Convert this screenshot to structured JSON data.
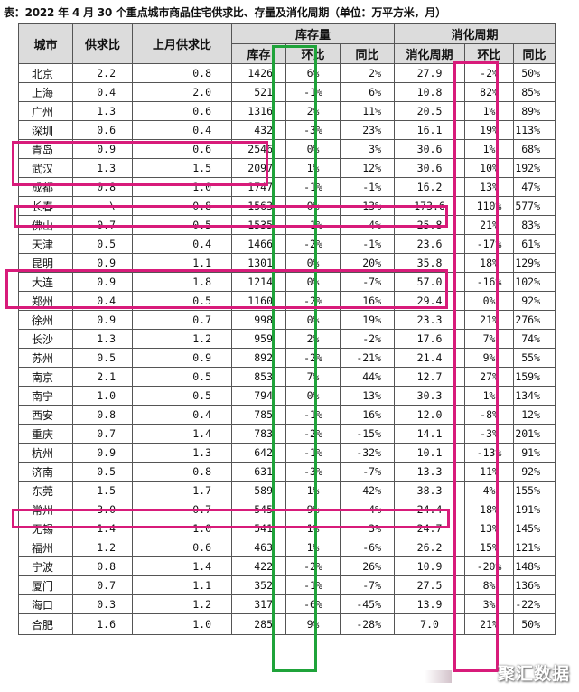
{
  "title": "表：2022 年 4 月 30 个重点城市商品住宅供求比、存量及消化周期（单位：万平方米，月）",
  "headers": {
    "city": "城市",
    "supply_ratio": "供求比",
    "last_month_ratio": "上月供求比",
    "stock_group": "库存量",
    "cycle_group": "消化周期",
    "stock": "库存",
    "stock_mom": "环比",
    "stock_yoy": "同比",
    "cycle": "消化周期",
    "cycle_mom": "环比",
    "cycle_yoy": "同比"
  },
  "rows": [
    {
      "city": "北京",
      "ratio": "2.2",
      "last": "0.8",
      "stock": "1426",
      "smom": "6%",
      "syoy": "2%",
      "cycle": "27.9",
      "cmom": "-2%",
      "cyoy": "50%"
    },
    {
      "city": "上海",
      "ratio": "0.4",
      "last": "2.0",
      "stock": "521",
      "smom": "-1%",
      "syoy": "6%",
      "cycle": "10.8",
      "cmom": "82%",
      "cyoy": "85%"
    },
    {
      "city": "广州",
      "ratio": "1.3",
      "last": "0.6",
      "stock": "1316",
      "smom": "2%",
      "syoy": "11%",
      "cycle": "20.5",
      "cmom": "1%",
      "cyoy": "89%"
    },
    {
      "city": "深圳",
      "ratio": "0.6",
      "last": "0.4",
      "stock": "432",
      "smom": "-3%",
      "syoy": "23%",
      "cycle": "16.1",
      "cmom": "19%",
      "cyoy": "113%"
    },
    {
      "city": "青岛",
      "ratio": "0.9",
      "last": "0.6",
      "stock": "2546",
      "smom": "0%",
      "syoy": "3%",
      "cycle": "30.6",
      "cmom": "1%",
      "cyoy": "68%"
    },
    {
      "city": "武汉",
      "ratio": "1.3",
      "last": "1.5",
      "stock": "2097",
      "smom": "1%",
      "syoy": "12%",
      "cycle": "30.6",
      "cmom": "10%",
      "cyoy": "192%"
    },
    {
      "city": "成都",
      "ratio": "0.8",
      "last": "1.0",
      "stock": "1747",
      "smom": "-1%",
      "syoy": "-1%",
      "cycle": "16.2",
      "cmom": "13%",
      "cyoy": "47%"
    },
    {
      "city": "长春",
      "ratio": "\\",
      "last": "0.8",
      "stock": "1563",
      "smom": "0%",
      "syoy": "13%",
      "cycle": "173.6",
      "cmom": "110%",
      "cyoy": "577%"
    },
    {
      "city": "佛山",
      "ratio": "0.7",
      "last": "0.5",
      "stock": "1535",
      "smom": "-1%",
      "syoy": "-4%",
      "cycle": "25.8",
      "cmom": "21%",
      "cyoy": "83%"
    },
    {
      "city": "天津",
      "ratio": "0.5",
      "last": "0.4",
      "stock": "1466",
      "smom": "-2%",
      "syoy": "-1%",
      "cycle": "23.6",
      "cmom": "-17%",
      "cyoy": "61%"
    },
    {
      "city": "昆明",
      "ratio": "0.9",
      "last": "1.1",
      "stock": "1301",
      "smom": "0%",
      "syoy": "20%",
      "cycle": "35.8",
      "cmom": "18%",
      "cyoy": "129%"
    },
    {
      "city": "大连",
      "ratio": "0.9",
      "last": "1.8",
      "stock": "1214",
      "smom": "0%",
      "syoy": "-7%",
      "cycle": "57.0",
      "cmom": "-16%",
      "cyoy": "102%"
    },
    {
      "city": "郑州",
      "ratio": "0.4",
      "last": "0.5",
      "stock": "1160",
      "smom": "-2%",
      "syoy": "16%",
      "cycle": "29.4",
      "cmom": "0%",
      "cyoy": "92%"
    },
    {
      "city": "徐州",
      "ratio": "0.9",
      "last": "0.7",
      "stock": "998",
      "smom": "0%",
      "syoy": "19%",
      "cycle": "23.3",
      "cmom": "21%",
      "cyoy": "276%"
    },
    {
      "city": "长沙",
      "ratio": "1.3",
      "last": "1.2",
      "stock": "959",
      "smom": "2%",
      "syoy": "-2%",
      "cycle": "17.6",
      "cmom": "7%",
      "cyoy": "74%"
    },
    {
      "city": "苏州",
      "ratio": "0.5",
      "last": "0.9",
      "stock": "892",
      "smom": "-2%",
      "syoy": "-21%",
      "cycle": "21.4",
      "cmom": "9%",
      "cyoy": "55%"
    },
    {
      "city": "南京",
      "ratio": "2.1",
      "last": "0.5",
      "stock": "853",
      "smom": "7%",
      "syoy": "44%",
      "cycle": "12.7",
      "cmom": "27%",
      "cyoy": "159%"
    },
    {
      "city": "南宁",
      "ratio": "1.0",
      "last": "0.5",
      "stock": "794",
      "smom": "0%",
      "syoy": "13%",
      "cycle": "30.3",
      "cmom": "1%",
      "cyoy": "134%"
    },
    {
      "city": "西安",
      "ratio": "0.8",
      "last": "0.4",
      "stock": "785",
      "smom": "-1%",
      "syoy": "16%",
      "cycle": "12.0",
      "cmom": "-8%",
      "cyoy": "12%"
    },
    {
      "city": "重庆",
      "ratio": "0.7",
      "last": "1.4",
      "stock": "783",
      "smom": "-2%",
      "syoy": "-15%",
      "cycle": "14.1",
      "cmom": "-3%",
      "cyoy": "201%"
    },
    {
      "city": "杭州",
      "ratio": "0.9",
      "last": "1.3",
      "stock": "642",
      "smom": "-1%",
      "syoy": "-32%",
      "cycle": "10.1",
      "cmom": "-13%",
      "cyoy": "91%"
    },
    {
      "city": "济南",
      "ratio": "0.5",
      "last": "0.8",
      "stock": "631",
      "smom": "-3%",
      "syoy": "-7%",
      "cycle": "13.3",
      "cmom": "11%",
      "cyoy": "92%"
    },
    {
      "city": "东莞",
      "ratio": "1.5",
      "last": "1.7",
      "stock": "589",
      "smom": "1%",
      "syoy": "42%",
      "cycle": "38.3",
      "cmom": "4%",
      "cyoy": "155%"
    },
    {
      "city": "常州",
      "ratio": "3.0",
      "last": "0.7",
      "stock": "545",
      "smom": "9%",
      "syoy": "4%",
      "cycle": "24.4",
      "cmom": "18%",
      "cyoy": "191%"
    },
    {
      "city": "无锡",
      "ratio": "1.4",
      "last": "1.0",
      "stock": "541",
      "smom": "1%",
      "syoy": "3%",
      "cycle": "24.7",
      "cmom": "13%",
      "cyoy": "145%"
    },
    {
      "city": "福州",
      "ratio": "1.2",
      "last": "0.6",
      "stock": "463",
      "smom": "1%",
      "syoy": "-6%",
      "cycle": "26.2",
      "cmom": "15%",
      "cyoy": "121%"
    },
    {
      "city": "宁波",
      "ratio": "0.8",
      "last": "1.4",
      "stock": "422",
      "smom": "-2%",
      "syoy": "26%",
      "cycle": "10.9",
      "cmom": "-20%",
      "cyoy": "148%"
    },
    {
      "city": "厦门",
      "ratio": "0.7",
      "last": "1.1",
      "stock": "352",
      "smom": "-1%",
      "syoy": "-7%",
      "cycle": "27.5",
      "cmom": "8%",
      "cyoy": "136%"
    },
    {
      "city": "海口",
      "ratio": "0.3",
      "last": "1.2",
      "stock": "317",
      "smom": "-6%",
      "syoy": "-45%",
      "cycle": "13.9",
      "cmom": "3%",
      "cyoy": "-22%"
    },
    {
      "city": "合肥",
      "ratio": "1.6",
      "last": "1.0",
      "stock": "285",
      "smom": "9%",
      "syoy": "-28%",
      "cycle": "7.0",
      "cmom": "21%",
      "cyoy": "50%"
    }
  ],
  "highlights": {
    "green_color": "#1fa33a",
    "pink_color": "#d81b7a",
    "pink_rows": [
      "青岛",
      "武汉",
      "长春",
      "昆明",
      "大连",
      "东莞"
    ]
  },
  "watermark": "聚汇数据"
}
